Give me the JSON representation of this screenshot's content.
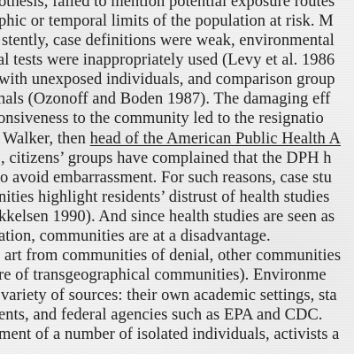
{
  "lines": [
    {
      "text": "othesis, failed to mention potential exposure routes"
    },
    {
      "text": "phic or temporal limits of the population at risk.  M"
    },
    {
      "text": "stently, case definitions were weak, environmental"
    },
    {
      "text": "al tests were inappropriately used (Levy et al. 1986"
    },
    {
      "text": "with unexposed individuals, and comparison group"
    },
    {
      "text": "nals (Ozonoff and Boden 1987).  The damaging eff"
    },
    {
      "text": "onsiveness to the community led to the resignatio"
    },
    {
      "pre": "Walker, then ",
      "underlined": "head of the American Public Health A"
    },
    {
      "text": ", citizens’ groups have complained that the DPH h"
    },
    {
      "text": "o avoid embarrassment. For such reasons, case stu"
    },
    {
      "text": "nities highlight residents’ distrust of health studies"
    },
    {
      "text": "kkelsen 1990). And since health studies are seen as"
    },
    {
      "text": "ation, communities are at a disadvantage."
    },
    {
      "text": "art from communities of denial, other communities"
    },
    {
      "text": "re of transgeographical communities).  Environme"
    },
    {
      "text": "variety of sources: their own academic settings, sta"
    },
    {
      "text": "ents, and federal agencies such as EPA and CDC."
    },
    {
      "text": "ment of a number of isolated individuals, activists a"
    }
  ]
}
